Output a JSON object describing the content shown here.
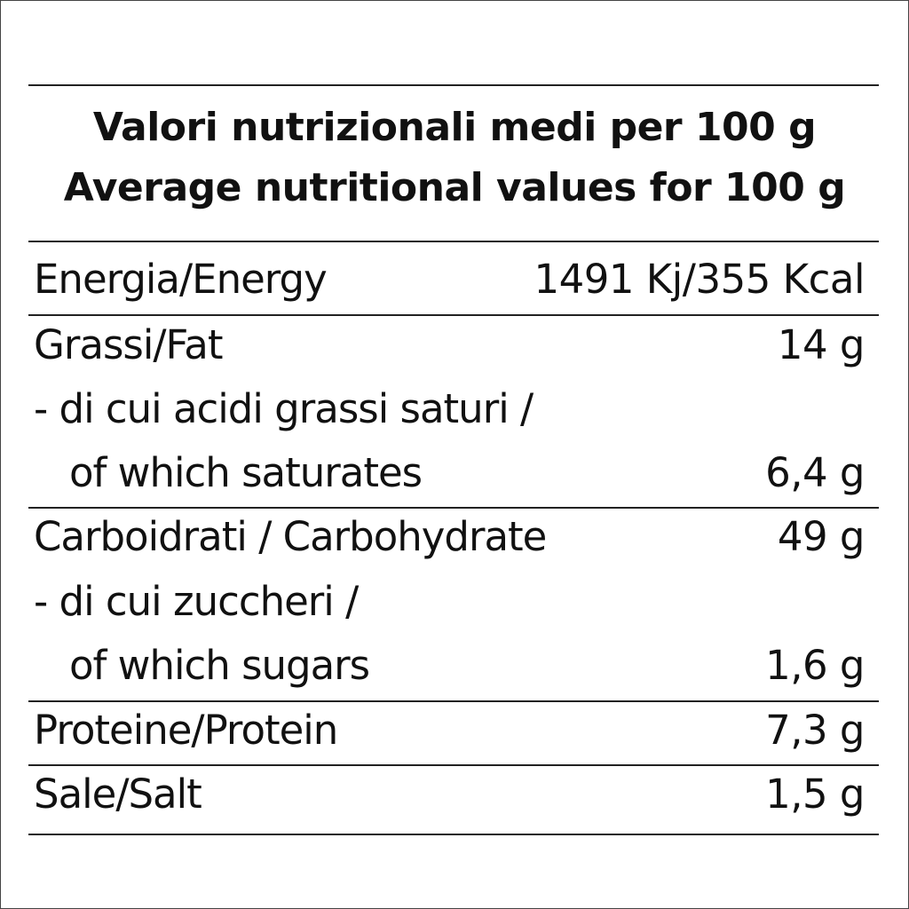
{
  "title_it": "Valori nutrizionali medi per 100 g",
  "title_en": "Average nutritional values for 100 g",
  "rows": [
    {
      "label": "Energia/Energy",
      "value": "1491 Kj/355 Kcal"
    },
    {
      "label": "Grassi/Fat",
      "value": "14 g"
    },
    {
      "label": "- di cui acidi grassi saturi /",
      "label2": "of which saturates",
      "value": "6,4 g"
    },
    {
      "label": "Carboidrati / Carbohydrate",
      "value": "49 g"
    },
    {
      "label": "- di cui zuccheri /",
      "label2": "of which sugars",
      "value": "1,6 g"
    },
    {
      "label": "Proteine/Protein",
      "value": "7,3 g"
    },
    {
      "label": "Sale/Salt",
      "value": "1,5 g"
    }
  ]
}
